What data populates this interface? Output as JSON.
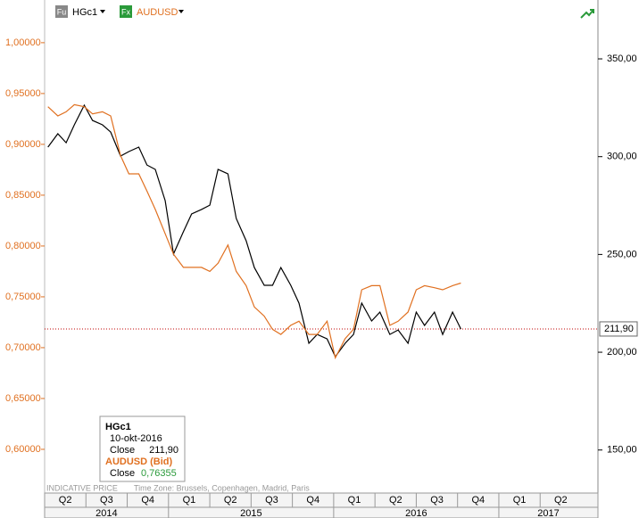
{
  "chart_data": {
    "type": "line",
    "x": [
      2014.27,
      2014.33,
      2014.38,
      2014.43,
      2014.49,
      2014.54,
      2014.6,
      2014.65,
      2014.71,
      2014.76,
      2014.82,
      2014.87,
      2014.92,
      2014.98,
      2015.03,
      2015.09,
      2015.14,
      2015.2,
      2015.25,
      2015.3,
      2015.36,
      2015.41,
      2015.47,
      2015.52,
      2015.58,
      2015.63,
      2015.68,
      2015.74,
      2015.79,
      2015.85,
      2015.9,
      2015.96,
      2016.01,
      2016.07,
      2016.12,
      2016.17,
      2016.23,
      2016.28,
      2016.34,
      2016.39,
      2016.45,
      2016.5,
      2016.55,
      2016.61,
      2016.66,
      2016.72,
      2016.77
    ],
    "xlim": [
      2014.25,
      2017.6
    ],
    "quarters": [
      "Q2",
      "Q3",
      "Q4",
      "Q1",
      "Q2",
      "Q3",
      "Q4",
      "Q1",
      "Q2",
      "Q3",
      "Q4",
      "Q1",
      "Q2"
    ],
    "years": [
      2014,
      2015,
      2016,
      2017
    ],
    "series": [
      {
        "name": "HGc1",
        "icon": "Fu",
        "color": "#000000",
        "axis": "y2",
        "values": [
          304.9,
          311.7,
          307.1,
          316.3,
          326.3,
          318.5,
          316.3,
          312.6,
          300.3,
          302.6,
          304.9,
          295.7,
          293.5,
          277.5,
          250.2,
          261.6,
          270.7,
          273.0,
          275.2,
          293.5,
          291.2,
          268.4,
          257.0,
          243.3,
          234.2,
          234.2,
          243.3,
          234.2,
          225.1,
          204.6,
          209.1,
          206.8,
          197.7,
          204.6,
          209.1,
          225.1,
          216.0,
          220.5,
          209.1,
          211.4,
          204.6,
          220.5,
          213.7,
          220.5,
          209.1,
          220.5,
          211.9
        ]
      },
      {
        "name": "AUDUSD",
        "icon": "Fx",
        "color": "#e07020",
        "values": [
          0.937,
          0.928,
          0.932,
          0.939,
          0.937,
          0.93,
          0.932,
          0.928,
          0.889,
          0.871,
          0.871,
          0.854,
          0.836,
          0.812,
          0.792,
          0.779,
          0.779,
          0.779,
          0.775,
          0.783,
          0.801,
          0.775,
          0.761,
          0.74,
          0.731,
          0.718,
          0.713,
          0.722,
          0.726,
          0.713,
          0.713,
          0.726,
          0.69,
          0.709,
          0.718,
          0.757,
          0.761,
          0.761,
          0.722,
          0.726,
          0.735,
          0.757,
          0.761,
          0.759,
          0.757,
          0.761,
          0.76355
        ]
      }
    ],
    "ylim": [
      0.557,
      1.042
    ],
    "yticks": [
      {
        "value": 0.6,
        "label": "0,60000"
      },
      {
        "value": 0.65,
        "label": "0,65000"
      },
      {
        "value": 0.7,
        "label": "0,70000"
      },
      {
        "value": 0.75,
        "label": "0,75000"
      },
      {
        "value": 0.8,
        "label": "0,80000"
      },
      {
        "value": 0.85,
        "label": "0,85000"
      },
      {
        "value": 0.9,
        "label": "0,90000"
      },
      {
        "value": 0.95,
        "label": "0,95000"
      },
      {
        "value": 1.0,
        "label": "1,00000"
      }
    ],
    "y2lim": [
      128,
      380.1
    ],
    "y2ticks": [
      {
        "value": 150,
        "label": "150,00"
      },
      {
        "value": 200,
        "label": "200,00"
      },
      {
        "value": 250,
        "label": "250,00"
      },
      {
        "value": 300,
        "label": "300,00"
      },
      {
        "value": 350,
        "label": "350,00"
      }
    ],
    "last_value": {
      "value": 211.9,
      "label": "211,90"
    },
    "footer": [
      "INDICATIVE PRICE",
      "Time Zone: Brussels, Copenhagen, Madrid, Paris"
    ],
    "tooltip": {
      "title": "HGc1",
      "date": "10-okt-2016",
      "close_label": "Close",
      "close": "211,90",
      "title2": "AUDUSD (Bid)",
      "close_label2": "Close",
      "close2": "0,76355"
    }
  }
}
